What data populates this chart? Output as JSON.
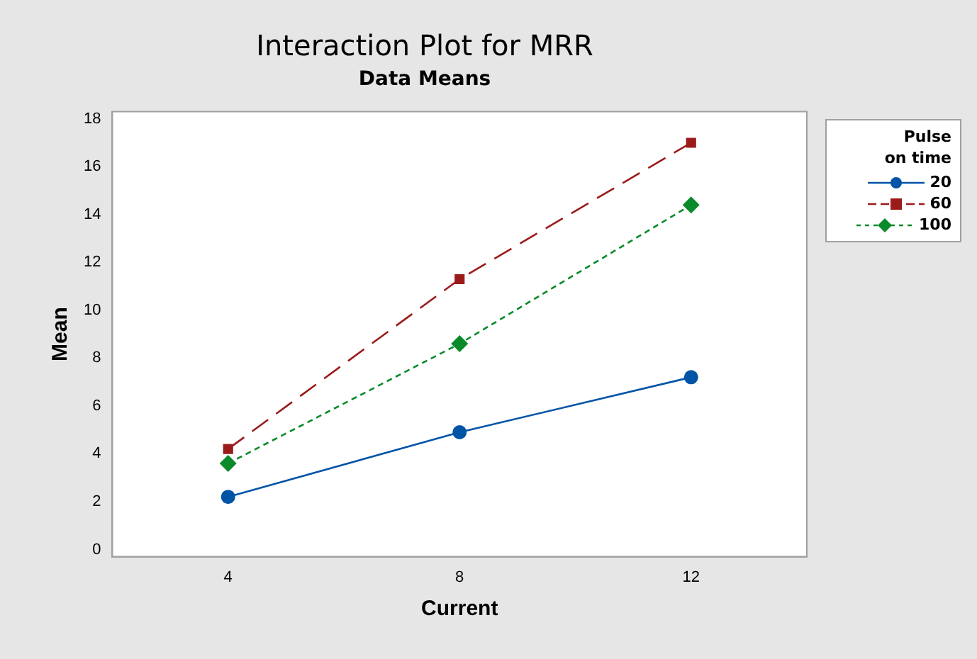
{
  "chart_data": {
    "type": "line",
    "title": "Interaction Plot for MRR",
    "subtitle": "Data Means",
    "xlabel": "Current",
    "ylabel": "Mean",
    "legend_title": "Pulse on time",
    "categories": [
      "4",
      "8",
      "12"
    ],
    "series": [
      {
        "name": "20",
        "color": "#0054a6",
        "values": [
          2.2,
          4.9,
          7.2
        ],
        "marker": "circle",
        "line_style": "solid"
      },
      {
        "name": "60",
        "color": "#9b1b1b",
        "values": [
          4.2,
          11.3,
          17.0
        ],
        "marker": "square",
        "line_style": "dashed"
      },
      {
        "name": "100",
        "color": "#0a8a2a",
        "values": [
          3.6,
          8.6,
          14.4
        ],
        "marker": "diamond",
        "line_style": "dotted"
      }
    ],
    "ylim": [
      -0.3,
      18.3
    ],
    "yticks": [
      0,
      2,
      4,
      6,
      8,
      10,
      12,
      14,
      16,
      18
    ],
    "grid": false,
    "legend": "top right"
  }
}
